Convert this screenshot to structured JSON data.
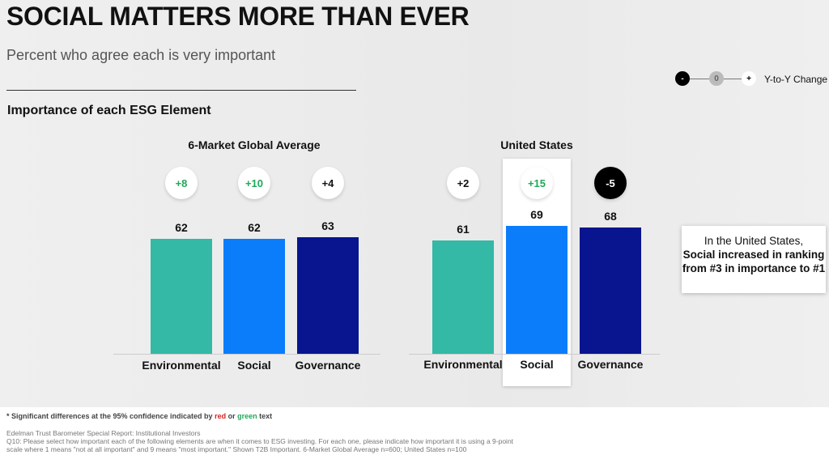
{
  "header": {
    "title": "SOCIAL MATTERS MORE THAN EVER",
    "subtitle": "Percent who agree each is very important",
    "section": "Importance of each ESG Element"
  },
  "legend": {
    "minus": "-",
    "zero": "0",
    "plus": "+",
    "label": "Y-to-Y Change"
  },
  "colors": {
    "Environmental": "#33b9a6",
    "Social": "#0b7dfb",
    "Governance": "#08158e",
    "positive": "#22a85a",
    "negative": "#e0201c"
  },
  "chart_data": {
    "type": "bar",
    "categories": [
      "Environmental",
      "Social",
      "Governance"
    ],
    "ylim": [
      0,
      69
    ],
    "grid": false,
    "groups": [
      {
        "name": "6-Market Global Average",
        "values": [
          62,
          62,
          63
        ],
        "changes": [
          "+8",
          "+10",
          "+4"
        ],
        "change_style": [
          "green",
          "green",
          "neutral"
        ]
      },
      {
        "name": "United States",
        "values": [
          61,
          69,
          68
        ],
        "changes": [
          "+2",
          "+15",
          "-5"
        ],
        "change_style": [
          "neutral",
          "green",
          "dark"
        ],
        "highlight": "Social"
      }
    ]
  },
  "callout": {
    "line1": "In the United States,",
    "line2": "Social increased in ranking from #3 in importance to #1"
  },
  "footer": {
    "sig_prefix": "* Significant differences at the 95% confidence indicated by ",
    "sig_red": "red",
    "sig_or": " or ",
    "sig_green": "green",
    "sig_suffix": " text",
    "source": "Edelman Trust Barometer Special Report: Institutional Investors",
    "q1": "Q10: Please select how important each of the following elements are when it comes to ESG investing. For each one, please indicate how important it is using a 9-point",
    "q2": "scale where 1 means \"not at all important\" and 9 means \"most important.\" Shown T2B Important. 6-Market Global Average n=600; United States n=100"
  }
}
